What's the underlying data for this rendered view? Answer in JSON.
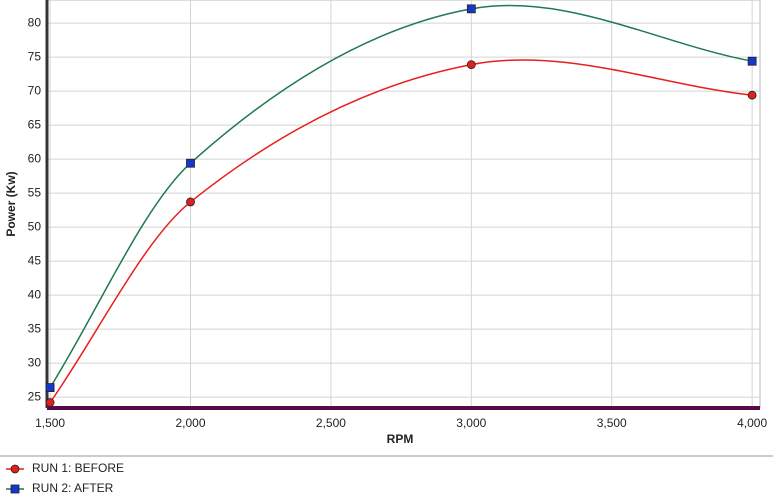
{
  "chart_data": {
    "type": "line",
    "x_label": "RPM",
    "y_label": "Power (Kw)",
    "x": [
      1500,
      2000,
      3000,
      4000
    ],
    "series": [
      {
        "name": "RUN 1: BEFORE",
        "color": "#e8201c",
        "marker_color": "#e02020",
        "marker": "circle",
        "values": [
          24.2,
          53.7,
          73.9,
          69.4
        ]
      },
      {
        "name": "RUN 2: AFTER",
        "color": "#1f7a4d",
        "marker_color": "#1538c8",
        "marker": "square",
        "values": [
          26.4,
          59.4,
          82.1,
          74.4
        ]
      }
    ],
    "xlim": [
      1489,
      4028
    ],
    "ylim": [
      23.4,
      83.4
    ],
    "xticks": [
      {
        "value": 1500,
        "label": "1,500"
      },
      {
        "value": 2000,
        "label": "2,000"
      },
      {
        "value": 2500,
        "label": "2,500"
      },
      {
        "value": 3000,
        "label": "3,000"
      },
      {
        "value": 3500,
        "label": "3,500"
      },
      {
        "value": 4000,
        "label": "4,000"
      }
    ],
    "yticks": [
      25,
      30,
      35,
      40,
      45,
      50,
      55,
      60,
      65,
      70,
      75,
      80
    ],
    "grid": true,
    "legend": "bottom-left"
  }
}
